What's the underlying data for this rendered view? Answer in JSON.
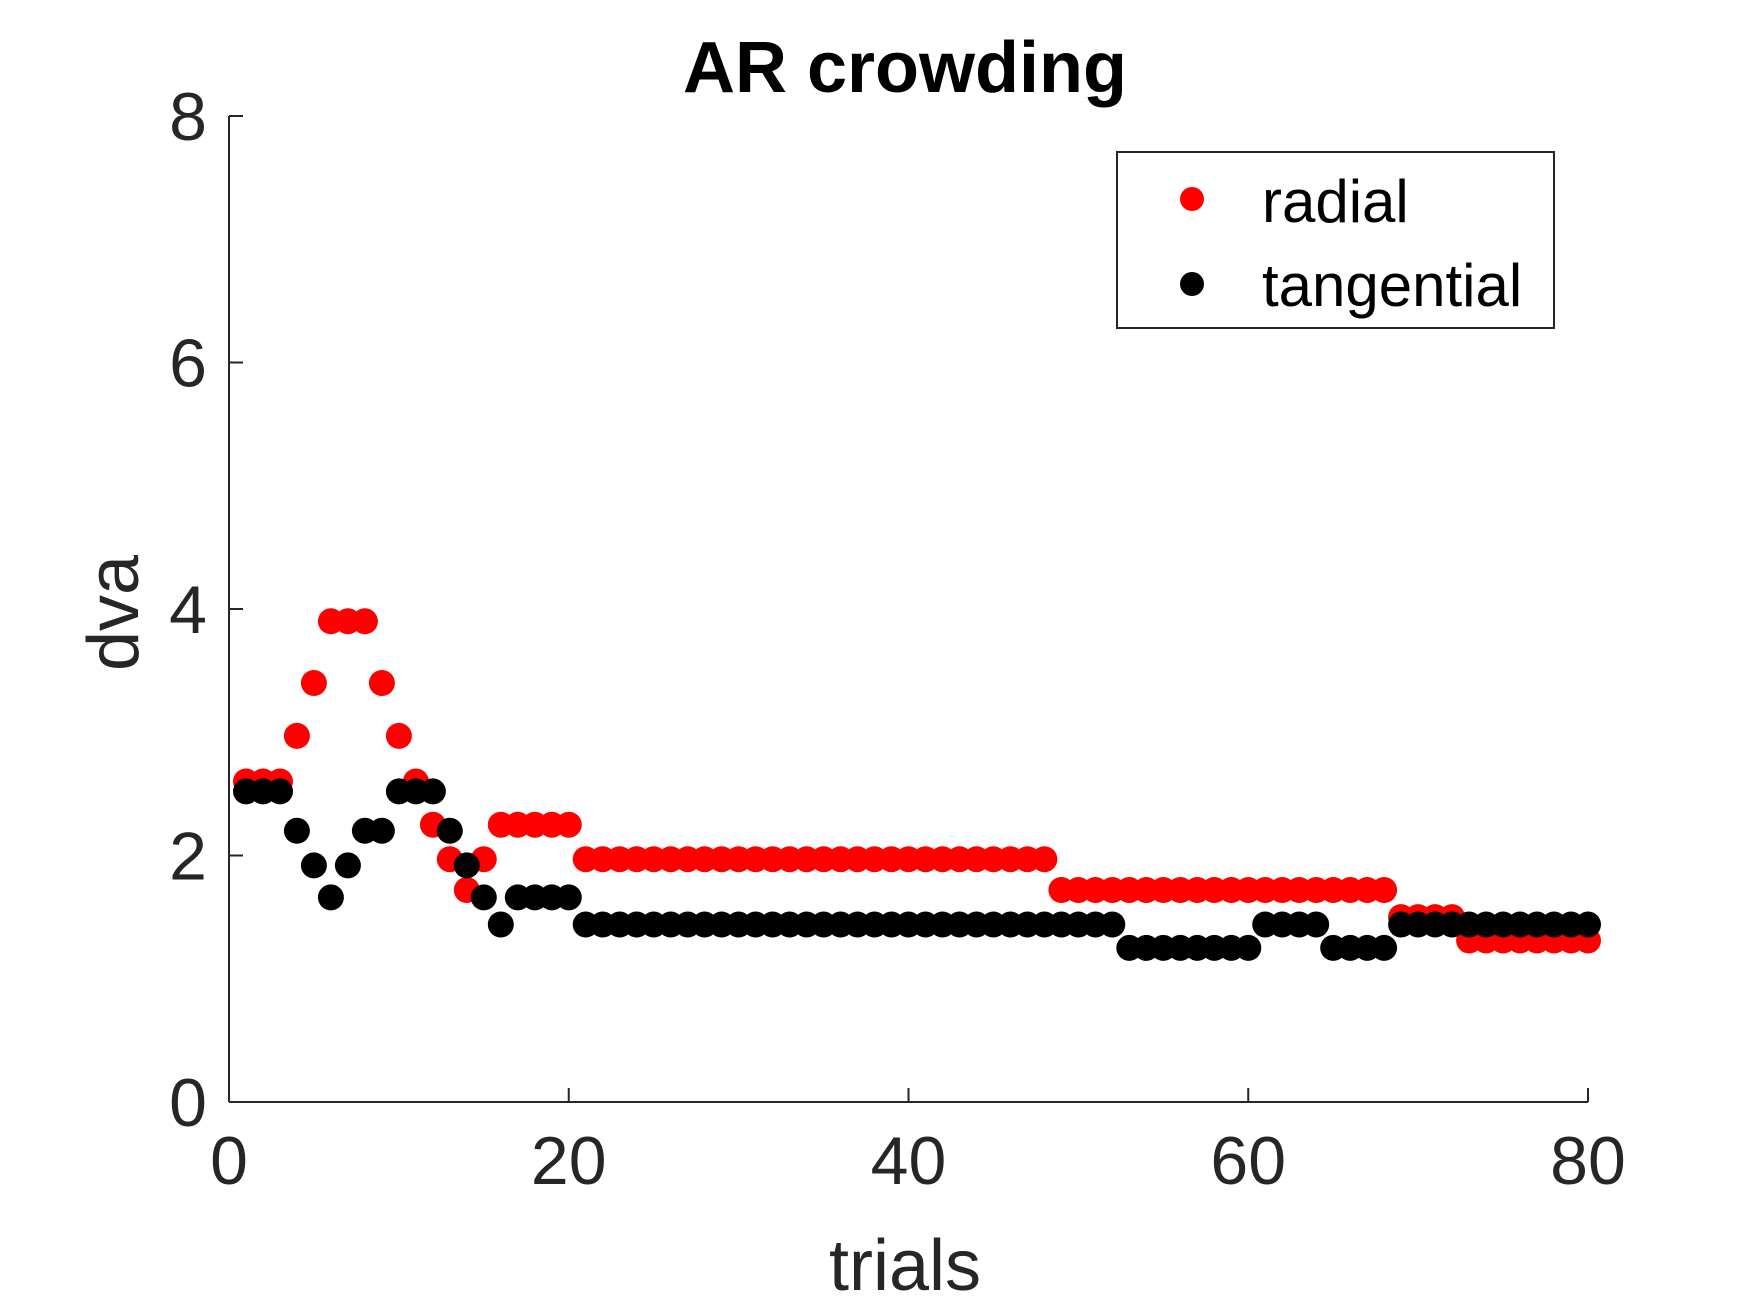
{
  "chart_data": {
    "type": "scatter",
    "title": "AR crowding",
    "xlabel": "trials",
    "ylabel": "dva",
    "xlim": [
      0,
      80
    ],
    "ylim": [
      0,
      8
    ],
    "xticks": [
      0,
      20,
      40,
      60,
      80
    ],
    "yticks": [
      0,
      2,
      4,
      6,
      8
    ],
    "xtick_labels": [
      "0",
      "20",
      "40",
      "60",
      "80"
    ],
    "ytick_labels": [
      "0",
      "2",
      "4",
      "6",
      "8"
    ],
    "grid": false,
    "legend_position": "top-right",
    "x": [
      1,
      2,
      3,
      4,
      5,
      6,
      7,
      8,
      9,
      10,
      11,
      12,
      13,
      14,
      15,
      16,
      17,
      18,
      19,
      20,
      21,
      22,
      23,
      24,
      25,
      26,
      27,
      28,
      29,
      30,
      31,
      32,
      33,
      34,
      35,
      36,
      37,
      38,
      39,
      40,
      41,
      42,
      43,
      44,
      45,
      46,
      47,
      48,
      49,
      50,
      51,
      52,
      53,
      54,
      55,
      56,
      57,
      58,
      59,
      60,
      61,
      62,
      63,
      64,
      65,
      66,
      67,
      68,
      69,
      70,
      71,
      72,
      73,
      74,
      75,
      76,
      77,
      78,
      79,
      80
    ],
    "series": [
      {
        "name": "radial",
        "color": "#ff0000",
        "values": [
          2.6,
          2.6,
          2.6,
          2.97,
          3.4,
          3.9,
          3.9,
          3.9,
          3.4,
          2.97,
          2.6,
          2.25,
          1.97,
          1.72,
          1.97,
          2.25,
          2.25,
          2.25,
          2.25,
          2.25,
          1.97,
          1.97,
          1.97,
          1.97,
          1.97,
          1.97,
          1.97,
          1.97,
          1.97,
          1.97,
          1.97,
          1.97,
          1.97,
          1.97,
          1.97,
          1.97,
          1.97,
          1.97,
          1.97,
          1.97,
          1.97,
          1.97,
          1.97,
          1.97,
          1.97,
          1.97,
          1.97,
          1.97,
          1.72,
          1.72,
          1.72,
          1.72,
          1.72,
          1.72,
          1.72,
          1.72,
          1.72,
          1.72,
          1.72,
          1.72,
          1.72,
          1.72,
          1.72,
          1.72,
          1.72,
          1.72,
          1.72,
          1.72,
          1.5,
          1.5,
          1.5,
          1.5,
          1.31,
          1.31,
          1.31,
          1.31,
          1.31,
          1.31,
          1.31,
          1.31
        ]
      },
      {
        "name": "tangential",
        "color": "#000000",
        "values": [
          2.52,
          2.52,
          2.52,
          2.2,
          1.92,
          1.66,
          1.92,
          2.2,
          2.2,
          2.52,
          2.52,
          2.52,
          2.2,
          1.92,
          1.66,
          1.44,
          1.66,
          1.66,
          1.66,
          1.66,
          1.44,
          1.44,
          1.44,
          1.44,
          1.44,
          1.44,
          1.44,
          1.44,
          1.44,
          1.44,
          1.44,
          1.44,
          1.44,
          1.44,
          1.44,
          1.44,
          1.44,
          1.44,
          1.44,
          1.44,
          1.44,
          1.44,
          1.44,
          1.44,
          1.44,
          1.44,
          1.44,
          1.44,
          1.44,
          1.44,
          1.44,
          1.44,
          1.25,
          1.25,
          1.25,
          1.25,
          1.25,
          1.25,
          1.25,
          1.25,
          1.44,
          1.44,
          1.44,
          1.44,
          1.25,
          1.25,
          1.25,
          1.25,
          1.44,
          1.44,
          1.44,
          1.44,
          1.44,
          1.44,
          1.44,
          1.44,
          1.44,
          1.44,
          1.44,
          1.44
        ]
      }
    ]
  }
}
